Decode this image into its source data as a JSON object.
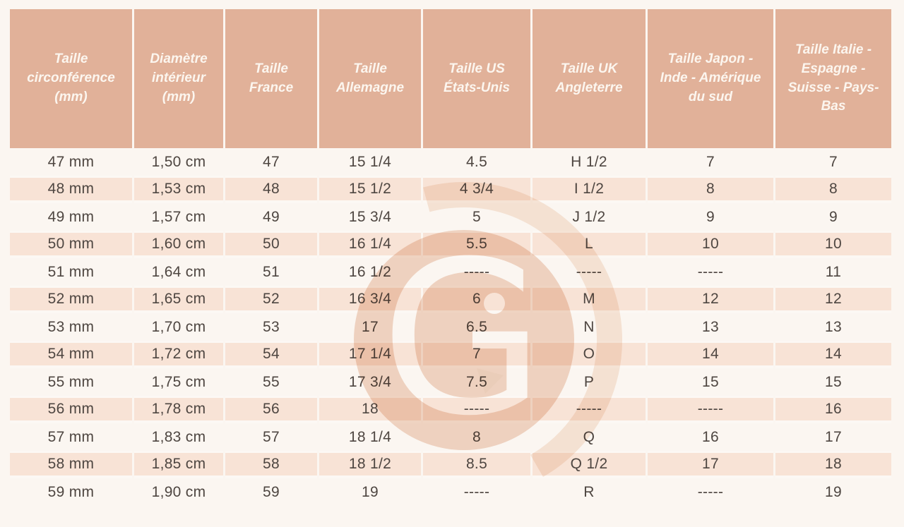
{
  "page": {
    "background_color": "#fbf6f1"
  },
  "table_style": {
    "header_bg": "#e1b199",
    "header_text_color": "#fcf6ef",
    "stripe_row_bg": "#f8e3d6",
    "plain_row_bg": "#ffffff",
    "body_text_color": "#4e4641"
  },
  "watermark": {
    "icon": "g-logo-watermark",
    "circle_color": "#f2d9ca",
    "arc_color": "#f8eadf",
    "arrow_color": "#eed5c4"
  },
  "chart_data": {
    "type": "table",
    "title": "",
    "columns": [
      "Taille circonférence (mm)",
      "Diamètre intérieur (mm)",
      "Taille France",
      "Taille Allemagne",
      "Taille US États-Unis",
      "Taille UK Angleterre",
      "Taille Japon - Inde - Amérique du sud",
      "Taille Italie - Espagne - Suisse - Pays-Bas"
    ],
    "rows": [
      [
        "47 mm",
        "1,50 cm",
        "47",
        "15 1/4",
        "4.5",
        "H 1/2",
        "7",
        "7"
      ],
      [
        "48 mm",
        "1,53 cm",
        "48",
        "15 1/2",
        "4 3/4",
        "I 1/2",
        "8",
        "8"
      ],
      [
        "49 mm",
        "1,57 cm",
        "49",
        "15 3/4",
        "5",
        "J 1/2",
        "9",
        "9"
      ],
      [
        "50 mm",
        "1,60 cm",
        "50",
        "16 1/4",
        "5.5",
        "L",
        "10",
        "10"
      ],
      [
        "51 mm",
        "1,64 cm",
        "51",
        "16 1/2",
        "-----",
        "-----",
        "-----",
        "11"
      ],
      [
        "52 mm",
        "1,65 cm",
        "52",
        "16 3/4",
        "6",
        "M",
        "12",
        "12"
      ],
      [
        "53 mm",
        "1,70 cm",
        "53",
        "17",
        "6.5",
        "N",
        "13",
        "13"
      ],
      [
        "54 mm",
        "1,72 cm",
        "54",
        "17 1/4",
        "7",
        "O",
        "14",
        "14"
      ],
      [
        "55 mm",
        "1,75 cm",
        "55",
        "17 3/4",
        "7.5",
        "P",
        "15",
        "15"
      ],
      [
        "56 mm",
        "1,78 cm",
        "56",
        "18",
        "-----",
        "-----",
        "-----",
        "16"
      ],
      [
        "57 mm",
        "1,83 cm",
        "57",
        "18 1/4",
        "8",
        "Q",
        "16",
        "17"
      ],
      [
        "58 mm",
        "1,85 cm",
        "58",
        "18 1/2",
        "8.5",
        "Q 1/2",
        "17",
        "18"
      ],
      [
        "59 mm",
        "1,90 cm",
        "59",
        "19",
        "-----",
        "R",
        "-----",
        "19"
      ]
    ],
    "layout": {
      "striped_rows": "even data rows shaded (48, 50, 52, ...)",
      "alignment": "center",
      "grid": "white column separators in header and shaded rows"
    }
  }
}
